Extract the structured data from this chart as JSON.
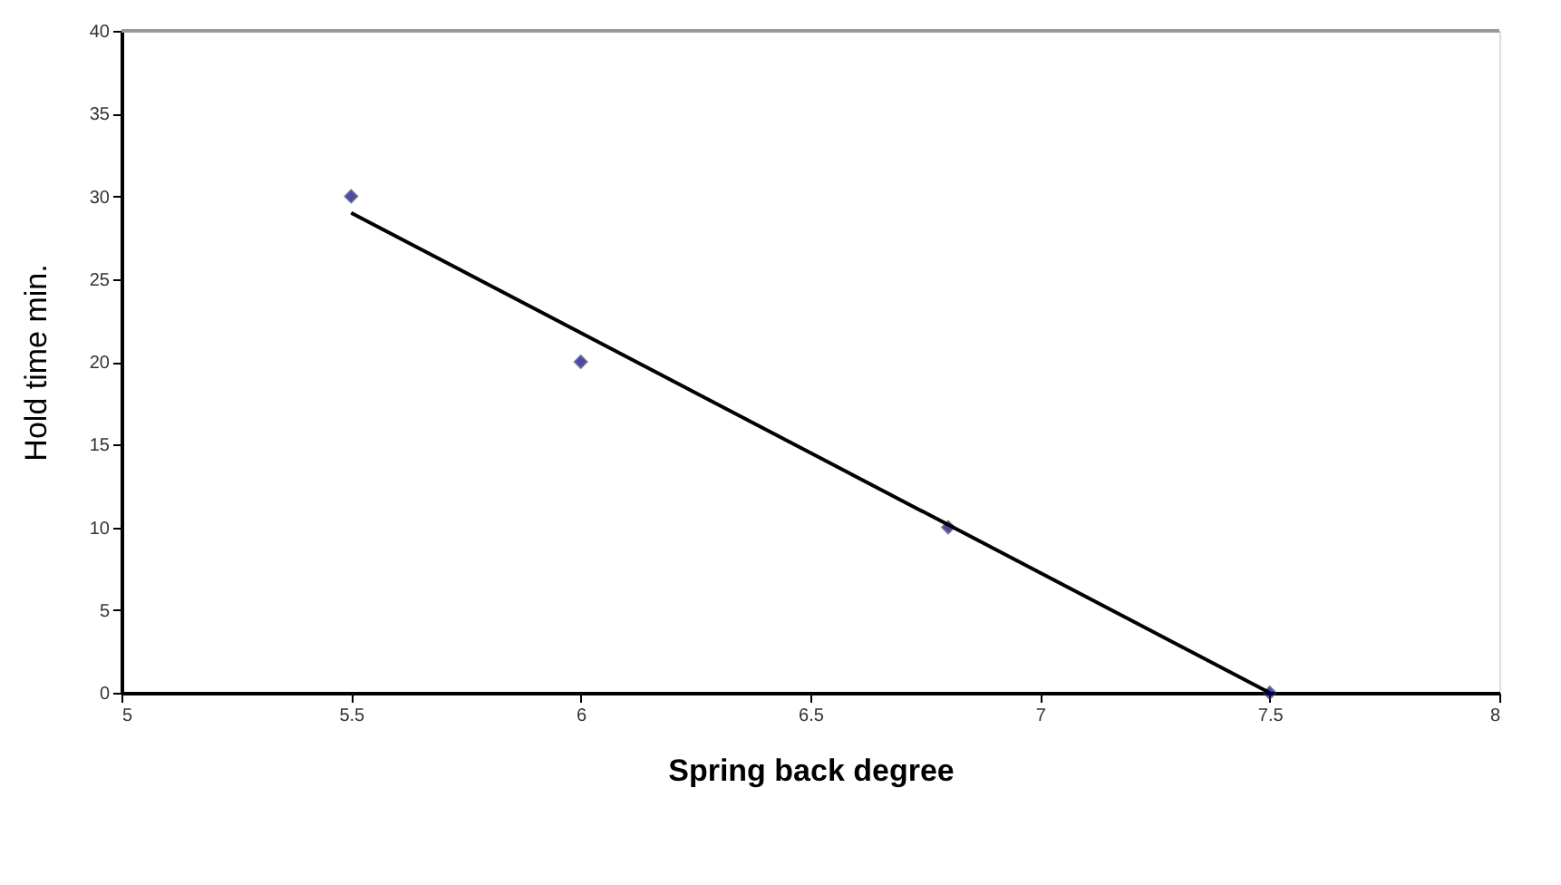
{
  "chart_data": {
    "type": "scatter",
    "xlabel": "Spring back degree",
    "ylabel": "Hold time min.",
    "xlim": [
      5,
      8
    ],
    "xticks": [
      5,
      5.5,
      6,
      6.5,
      7,
      7.5,
      8
    ],
    "ylim": [
      0,
      40
    ],
    "yticks": [
      0,
      5,
      10,
      15,
      20,
      25,
      30,
      35,
      40
    ],
    "grid": false,
    "marker": "diamond",
    "series": [
      {
        "color": "#000080",
        "x": [
          5.5,
          6,
          6.8,
          7.5
        ],
        "values": [
          30,
          20,
          10,
          0
        ]
      },
      {
        "type": "line",
        "color": "#000000",
        "x": [
          5.5,
          7.5
        ],
        "values": [
          29,
          0
        ],
        "marker": "none",
        "line_style": "solid"
      }
    ]
  }
}
